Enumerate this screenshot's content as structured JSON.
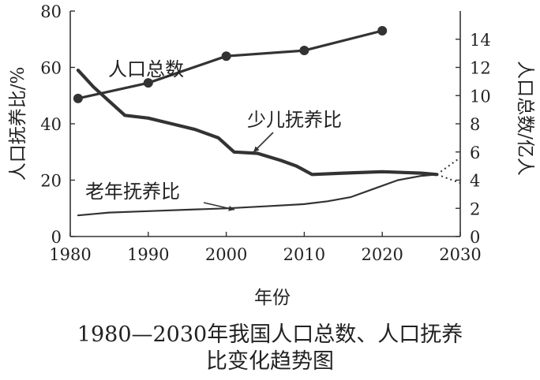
{
  "caption": {
    "line1": "1980—2030年我国人口总数、人口抚养",
    "line2": "比变化趋势图"
  },
  "chart_data": {
    "type": "line",
    "title": "1980—2030年我国人口总数、人口抚养比变化趋势图",
    "xlabel": "年份",
    "ylabel_left": "人口抚养比/%",
    "ylabel_right": "人口总数/亿人",
    "xlim": [
      1980,
      2030
    ],
    "ylim_left": [
      0,
      80
    ],
    "ylim_right": [
      0,
      16
    ],
    "x_ticks": [
      1980,
      1990,
      2000,
      2010,
      2020,
      2030
    ],
    "y_left_ticks": [
      0,
      20,
      40,
      60,
      80
    ],
    "y_right_ticks": [
      0,
      2,
      4,
      6,
      8,
      10,
      12,
      14
    ],
    "grid": false,
    "series": [
      {
        "name": "人口总数",
        "axis": "right",
        "marker": "circle",
        "x": [
          1981,
          1990,
          2000,
          2010,
          2020
        ],
        "y": [
          9.8,
          10.9,
          12.8,
          13.2,
          14.6
        ]
      },
      {
        "name": "少儿抚养比",
        "axis": "left",
        "x": [
          1981,
          1983,
          1985,
          1987,
          1990,
          1993,
          1996,
          1999,
          2001,
          2004,
          2007,
          2009,
          2011,
          2015,
          2020,
          2025,
          2027
        ],
        "y": [
          59,
          53,
          48,
          43,
          42,
          40,
          38,
          35,
          30,
          29.5,
          27,
          25,
          22,
          22.5,
          23,
          22.5,
          22
        ],
        "projection": {
          "x": [
            2027,
            2030
          ],
          "y": [
            22,
            19
          ]
        }
      },
      {
        "name": "老年抚养比",
        "axis": "left",
        "x": [
          1981,
          1985,
          1990,
          1995,
          2000,
          2005,
          2010,
          2013,
          2016,
          2019,
          2022,
          2025,
          2027
        ],
        "y": [
          7.5,
          8.5,
          9,
          9.5,
          10,
          10.7,
          11.5,
          12.5,
          14,
          17,
          20,
          21.5,
          22
        ],
        "projection": {
          "x": [
            2027,
            2030
          ],
          "y": [
            22,
            28
          ]
        }
      }
    ]
  }
}
